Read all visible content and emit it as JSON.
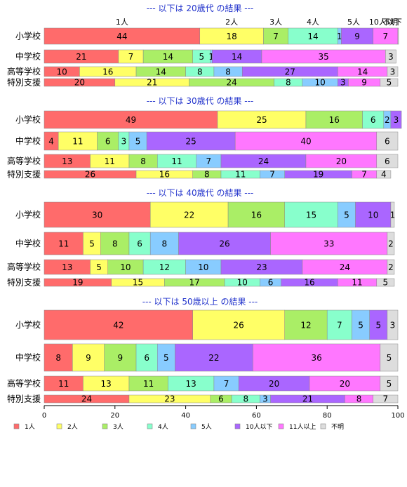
{
  "chart_data": {
    "type": "bar",
    "orientation": "horizontal-stacked-percent",
    "xlim": [
      0,
      100
    ],
    "xticks": [
      0,
      20,
      40,
      60,
      80,
      100
    ],
    "categories_legend": [
      "1人",
      "2人",
      "3人",
      "4人",
      "5人",
      "10人以下",
      "11人以上",
      "不明"
    ],
    "colors": [
      "#ff6b6b",
      "#ffff66",
      "#aaee66",
      "#88ffcc",
      "#88ccff",
      "#aa66ff",
      "#ff77ff",
      "#dddddd"
    ],
    "top_labels": [
      {
        "text": "1人",
        "at": 22
      },
      {
        "text": "2人",
        "at": 53
      },
      {
        "text": "3人",
        "at": 65.5
      },
      {
        "text": "4人",
        "at": 76
      },
      {
        "text": "5人",
        "at": 87.5
      },
      {
        "text": "10人以下",
        "at": 96.5
      },
      {
        "text": "不明",
        "at": 100
      }
    ],
    "sections": [
      {
        "title": "--- 以下は 20歳代 の結果 ---",
        "rows": [
          {
            "label": "小学校",
            "values": [
              44,
              18,
              7,
              14,
              1,
              9,
              7,
              0.2
            ],
            "labels": [
              "44",
              "18",
              "7",
              "14",
              "1",
              "9",
              "7",
              ""
            ]
          },
          {
            "label": "中学校",
            "values": [
              21,
              7,
              14,
              5,
              0.5,
              14,
              35,
              3
            ],
            "labels": [
              "21",
              "7",
              "14",
              "5",
              "1",
              "14",
              "35",
              "3"
            ]
          },
          {
            "label": "高等学校",
            "values": [
              10,
              16,
              14,
              8,
              8,
              27,
              14,
              3
            ],
            "labels": [
              "10",
              "16",
              "14",
              "8",
              "8",
              "27",
              "14",
              "3"
            ]
          },
          {
            "label": "特別支援",
            "values": [
              20,
              21,
              24,
              8,
              10,
              3,
              9,
              5
            ],
            "labels": [
              "20",
              "21",
              "24",
              "8",
              "10",
              "3",
              "9",
              "5"
            ]
          }
        ]
      },
      {
        "title": "--- 以下は 30歳代 の結果 ---",
        "rows": [
          {
            "label": "小学校",
            "values": [
              49,
              25,
              16,
              6,
              2,
              3,
              0,
              0
            ],
            "labels": [
              "49",
              "25",
              "16",
              "6",
              "2",
              "3",
              "",
              ""
            ]
          },
          {
            "label": "中学校",
            "values": [
              4,
              11,
              6,
              3,
              5,
              25,
              40,
              6
            ],
            "labels": [
              "4",
              "11",
              "6",
              "3",
              "5",
              "25",
              "40",
              "6"
            ]
          },
          {
            "label": "高等学校",
            "values": [
              13,
              11,
              8,
              11,
              7,
              24,
              20,
              6
            ],
            "labels": [
              "13",
              "11",
              "8",
              "11",
              "7",
              "24",
              "20",
              "6"
            ]
          },
          {
            "label": "特別支援",
            "values": [
              26,
              16,
              8,
              11,
              7,
              19,
              7,
              4
            ],
            "labels": [
              "26",
              "16",
              "8",
              "11",
              "7",
              "19",
              "7",
              "4"
            ]
          }
        ]
      },
      {
        "title": "--- 以下は 40歳代 の結果 ---",
        "rows": [
          {
            "label": "小学校",
            "values": [
              30,
              22,
              16,
              15,
              5,
              10,
              0,
              1
            ],
            "labels": [
              "30",
              "22",
              "16",
              "15",
              "5",
              "10",
              "",
              "1"
            ]
          },
          {
            "label": "中学校",
            "values": [
              11,
              5,
              8,
              6,
              8,
              26,
              33,
              2
            ],
            "labels": [
              "11",
              "5",
              "8",
              "6",
              "8",
              "26",
              "33",
              "2"
            ]
          },
          {
            "label": "高等学校",
            "values": [
              13,
              5,
              10,
              12,
              10,
              23,
              24,
              2
            ],
            "labels": [
              "13",
              "5",
              "10",
              "12",
              "10",
              "23",
              "24",
              "2"
            ]
          },
          {
            "label": "特別支援",
            "values": [
              19,
              15,
              17,
              10,
              6,
              16,
              11,
              5
            ],
            "labels": [
              "19",
              "15",
              "17",
              "10",
              "6",
              "16",
              "11",
              "5"
            ]
          }
        ]
      },
      {
        "title": "--- 以下は 50歳以上 の結果 ---",
        "rows": [
          {
            "label": "小学校",
            "values": [
              42,
              26,
              12,
              7,
              5,
              5,
              0,
              3
            ],
            "labels": [
              "42",
              "26",
              "12",
              "7",
              "5",
              "5",
              "",
              "3"
            ]
          },
          {
            "label": "中学校",
            "values": [
              8,
              9,
              9,
              6,
              5,
              22,
              36,
              5
            ],
            "labels": [
              "8",
              "9",
              "9",
              "6",
              "5",
              "22",
              "36",
              "5"
            ]
          },
          {
            "label": "高等学校",
            "values": [
              11,
              13,
              11,
              13,
              7,
              20,
              20,
              5
            ],
            "labels": [
              "11",
              "13",
              "11",
              "13",
              "7",
              "20",
              "20",
              "5"
            ]
          },
          {
            "label": "特別支援",
            "values": [
              24,
              23,
              6,
              8,
              3,
              21,
              8,
              7
            ],
            "labels": [
              "24",
              "23",
              "6",
              "8",
              "3",
              "21",
              "8",
              "7"
            ]
          }
        ]
      }
    ]
  }
}
